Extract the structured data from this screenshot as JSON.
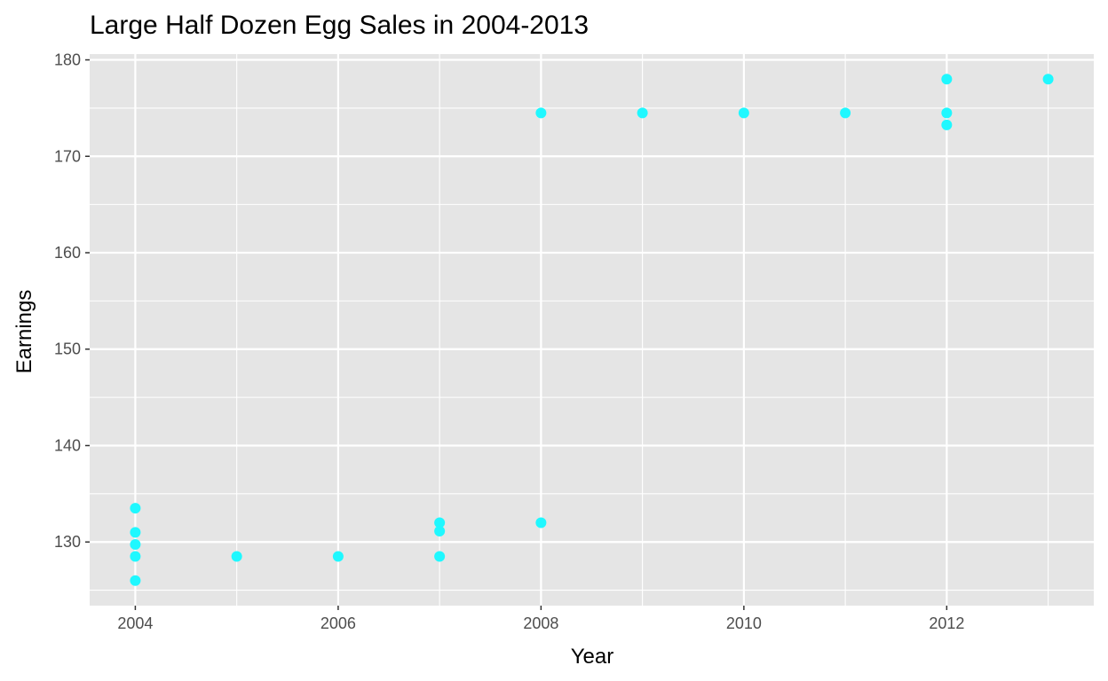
{
  "colors": {
    "panel_background": "#e5e5e5",
    "grid_line": "#ffffff",
    "point": "#1ff8ff",
    "tick_mark": "#333333",
    "tick_text": "#4d4d4d"
  },
  "chart_data": {
    "type": "scatter",
    "title": "Large Half Dozen Egg Sales in 2004-2013",
    "xlabel": "Year",
    "ylabel": "Earnings",
    "xlim": [
      2003.55,
      2013.45
    ],
    "ylim": [
      123.4,
      180.6
    ],
    "x_ticks": [
      2004,
      2006,
      2008,
      2010,
      2012
    ],
    "y_ticks": [
      130,
      140,
      150,
      160,
      170,
      180
    ],
    "x_tick_labels": [
      "2004",
      "2006",
      "2008",
      "2010",
      "2012"
    ],
    "y_tick_labels": [
      "130",
      "140",
      "150",
      "160",
      "170",
      "180"
    ],
    "grid": true,
    "legend": "none",
    "points": [
      {
        "x": 2004,
        "y": 126.0
      },
      {
        "x": 2004,
        "y": 128.5
      },
      {
        "x": 2004,
        "y": 129.75
      },
      {
        "x": 2004,
        "y": 131.0
      },
      {
        "x": 2004,
        "y": 133.5
      },
      {
        "x": 2005,
        "y": 128.5
      },
      {
        "x": 2006,
        "y": 128.5
      },
      {
        "x": 2007,
        "y": 128.5
      },
      {
        "x": 2007,
        "y": 131.125
      },
      {
        "x": 2007,
        "y": 132.0
      },
      {
        "x": 2008,
        "y": 132.0
      },
      {
        "x": 2008,
        "y": 174.5
      },
      {
        "x": 2009,
        "y": 174.5
      },
      {
        "x": 2010,
        "y": 174.5
      },
      {
        "x": 2011,
        "y": 174.5
      },
      {
        "x": 2012,
        "y": 173.25
      },
      {
        "x": 2012,
        "y": 174.5
      },
      {
        "x": 2012,
        "y": 178.0
      },
      {
        "x": 2013,
        "y": 178.0
      }
    ]
  }
}
